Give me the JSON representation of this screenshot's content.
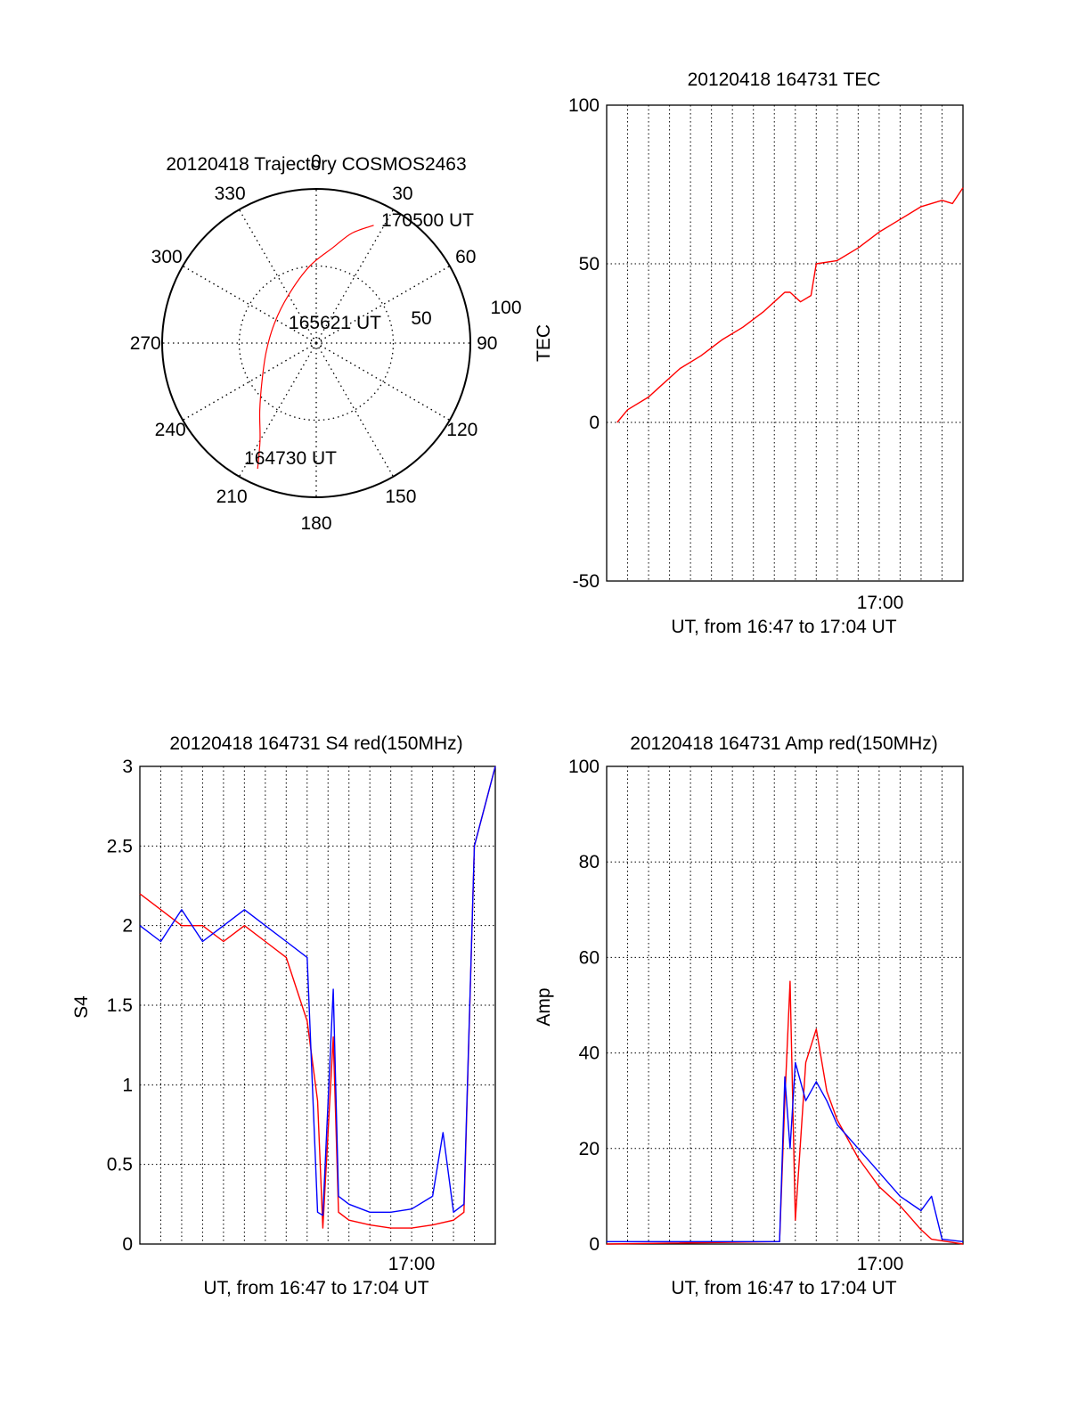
{
  "colors": {
    "red": "#ff0000",
    "blue": "#0000ff",
    "axis": "#000000",
    "grid": "#000000"
  },
  "chart_data": [
    {
      "id": "trajectory",
      "type": "polar",
      "title": "20120418 Trajectory COSMOS2463",
      "angle_labels": [
        "0",
        "30",
        "60",
        "90",
        "120",
        "150",
        "180",
        "210",
        "240",
        "270",
        "300",
        "330"
      ],
      "radial_labels": [
        "50",
        "100"
      ],
      "radial_max": 100,
      "trajectory": {
        "color": "red",
        "points": [
          {
            "az": 205,
            "r": 90
          },
          {
            "az": 210,
            "r": 73
          },
          {
            "az": 220,
            "r": 57
          },
          {
            "az": 235,
            "r": 43
          },
          {
            "az": 260,
            "r": 33
          },
          {
            "az": 295,
            "r": 30
          },
          {
            "az": 330,
            "r": 36
          },
          {
            "az": 355,
            "r": 50
          },
          {
            "az": 10,
            "r": 63
          },
          {
            "az": 18,
            "r": 75
          },
          {
            "az": 26,
            "r": 85
          }
        ]
      },
      "annotations": [
        {
          "text": "170500 UT",
          "az": 35,
          "r": 82
        },
        {
          "text": "165621 UT",
          "az": 270,
          "r": 6
        },
        {
          "text": "164730 UT",
          "az": 203,
          "r": 90
        }
      ]
    },
    {
      "id": "tec",
      "type": "line",
      "title": "20120418 164731 TEC",
      "ylabel": "TEC",
      "xlabel": "UT, from 16:47 to 17:04 UT",
      "xlim": [
        "16:47",
        "17:04"
      ],
      "ylim": [
        -50,
        100
      ],
      "yticks": [
        "-50",
        "0",
        "50",
        "100"
      ],
      "xtick_label": "17:00",
      "grid": true,
      "series": [
        {
          "color": "red",
          "x": [
            "16:47:30",
            "16:48:00",
            "16:49:00",
            "16:49:30",
            "16:50:30",
            "16:51:30",
            "16:52:30",
            "16:53:30",
            "16:54:30",
            "16:55:00",
            "16:55:30",
            "16:55:45",
            "16:56:15",
            "16:56:45",
            "16:57:00",
            "16:58:00",
            "16:59:00",
            "17:00:00",
            "17:01:00",
            "17:02:00",
            "17:03:00",
            "17:03:30",
            "17:04:00"
          ],
          "y": [
            0,
            4,
            8,
            11,
            17,
            21,
            26,
            30,
            35,
            38,
            41,
            41,
            38,
            40,
            50,
            51,
            55,
            60,
            64,
            68,
            70,
            69,
            74
          ]
        }
      ]
    },
    {
      "id": "s4",
      "type": "line",
      "title": "20120418 164731 S4 red(150MHz)",
      "ylabel": "S4",
      "xlabel": "UT, from 16:47 to 17:04 UT",
      "xlim": [
        "16:47",
        "17:04"
      ],
      "ylim": [
        0,
        3
      ],
      "yticks": [
        "0",
        "0.5",
        "1",
        "1.5",
        "2",
        "2.5",
        "3"
      ],
      "xtick_label": "17:00",
      "grid": true,
      "series": [
        {
          "color": "red",
          "x": [
            "16:47:00",
            "16:48:00",
            "16:49:00",
            "16:50:00",
            "16:51:00",
            "16:52:00",
            "16:53:00",
            "16:54:00",
            "16:55:00",
            "16:55:30",
            "16:55:45",
            "16:56:15",
            "16:56:30",
            "16:57:00",
            "16:58:00",
            "16:59:00",
            "17:00:00",
            "17:01:00",
            "17:02:00",
            "17:02:30",
            "17:03:00",
            "17:04:00"
          ],
          "y": [
            2.2,
            2.1,
            2.0,
            2.0,
            1.9,
            2.0,
            1.9,
            1.8,
            1.4,
            0.9,
            0.1,
            1.3,
            0.2,
            0.15,
            0.12,
            0.1,
            0.1,
            0.12,
            0.15,
            0.2,
            2.5,
            3.0
          ]
        },
        {
          "color": "blue",
          "x": [
            "16:47:00",
            "16:48:00",
            "16:49:00",
            "16:50:00",
            "16:51:00",
            "16:52:00",
            "16:53:00",
            "16:54:00",
            "16:55:00",
            "16:55:30",
            "16:55:45",
            "16:56:15",
            "16:56:30",
            "16:57:00",
            "16:58:00",
            "16:59:00",
            "17:00:00",
            "17:01:00",
            "17:01:30",
            "17:02:00",
            "17:02:30",
            "17:03:00",
            "17:04:00"
          ],
          "y": [
            2.0,
            1.9,
            2.1,
            1.9,
            2.0,
            2.1,
            2.0,
            1.9,
            1.8,
            0.2,
            0.18,
            1.6,
            0.3,
            0.25,
            0.2,
            0.2,
            0.22,
            0.3,
            0.7,
            0.2,
            0.25,
            2.5,
            3.0
          ]
        }
      ]
    },
    {
      "id": "amp",
      "type": "line",
      "title": "20120418 164731 Amp red(150MHz)",
      "ylabel": "Amp",
      "xlabel": "UT, from 16:47 to 17:04 UT",
      "xlim": [
        "16:47",
        "17:04"
      ],
      "ylim": [
        0,
        100
      ],
      "yticks": [
        "0",
        "20",
        "40",
        "60",
        "80",
        "100"
      ],
      "xtick_label": "17:00",
      "grid": true,
      "series": [
        {
          "color": "red",
          "x": [
            "16:47:00",
            "16:55:15",
            "16:55:30",
            "16:55:45",
            "16:56:00",
            "16:56:30",
            "16:57:00",
            "16:57:30",
            "16:58:00",
            "16:59:00",
            "17:00:00",
            "17:01:00",
            "17:02:00",
            "17:02:30",
            "17:04:00"
          ],
          "y": [
            0,
            0.5,
            30,
            55,
            5,
            38,
            45,
            32,
            26,
            18,
            12,
            8,
            3,
            1,
            0
          ]
        },
        {
          "color": "blue",
          "x": [
            "16:47:00",
            "16:55:15",
            "16:55:30",
            "16:55:45",
            "16:56:00",
            "16:56:30",
            "16:57:00",
            "16:57:30",
            "16:58:00",
            "16:59:00",
            "17:00:00",
            "17:01:00",
            "17:02:00",
            "17:02:30",
            "17:03:00",
            "17:04:00"
          ],
          "y": [
            0.5,
            0.5,
            35,
            20,
            38,
            30,
            34,
            30,
            25,
            20,
            15,
            10,
            7,
            10,
            1,
            0.5
          ]
        }
      ]
    }
  ]
}
